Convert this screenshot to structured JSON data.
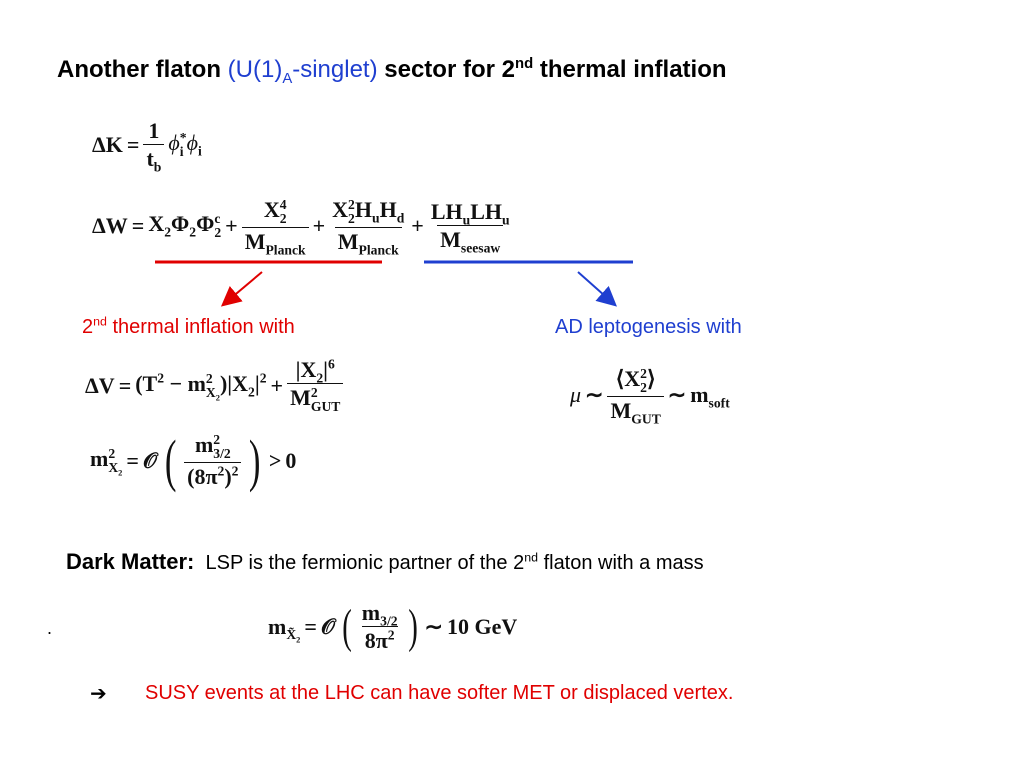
{
  "title": [
    "Another flaton",
    "(U(1)",
    "A",
    "-singlet)",
    "sector for  2",
    "nd",
    "thermal inflation"
  ],
  "eq_dK": [
    "ΔK",
    "=",
    "1",
    "t",
    "b",
    "ϕ",
    "*",
    "i",
    "ϕ",
    "i"
  ],
  "eq_dW": [
    "ΔW",
    "=",
    "X",
    "2",
    "Φ",
    "2",
    "Φ",
    "c",
    "2",
    "+",
    "X",
    "4",
    "2",
    "M",
    "Planck",
    "+",
    "X",
    "2",
    "2",
    "H",
    "u",
    "H",
    "d",
    "M",
    "Planck",
    "+",
    "LH",
    "u",
    "LH",
    "u",
    "M",
    "seesaw"
  ],
  "label_red": [
    "2",
    "nd",
    "thermal inflation with"
  ],
  "label_blue": "AD leptogenesis with",
  "eq_dV": [
    "ΔV",
    "=",
    "(T",
    "2",
    "−",
    "m",
    "2",
    "X",
    "2",
    ")|X",
    "2",
    "|",
    "2",
    "+",
    "|X",
    "2",
    "|",
    "6",
    "M",
    "2",
    "GUT"
  ],
  "eq_m": [
    "m",
    "2",
    "X",
    "2",
    "=",
    "𝒪",
    "(",
    "m",
    "2",
    "3/2",
    "(8π",
    "2",
    ")",
    "2",
    ")",
    ">",
    "0"
  ],
  "eq_mu": [
    "μ",
    "∼",
    "⟨X",
    "2",
    "2",
    "⟩",
    "M",
    "GUT",
    "∼",
    "m",
    "soft"
  ],
  "dark_matter": [
    "Dark Matter:",
    "LSP is  the fermionic partner of the 2",
    "nd",
    "flaton  with a mass"
  ],
  "dot": ".",
  "eq_mx": [
    "m",
    "X̃",
    "2",
    "=",
    "𝒪",
    "(",
    "m",
    "3/2",
    "8π",
    "2",
    ")",
    "∼",
    "10 GeV"
  ],
  "conclusion": [
    "➔",
    "SUSY events at the LHC can have softer MET or displaced vertex."
  ]
}
